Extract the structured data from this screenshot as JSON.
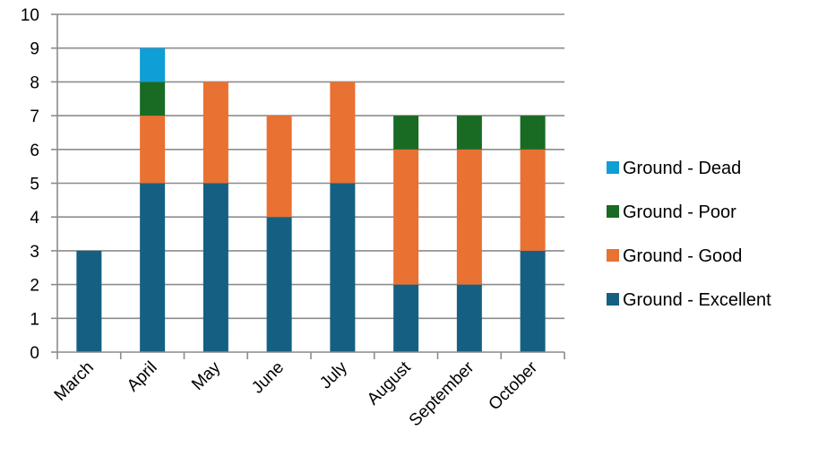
{
  "chart_data": {
    "type": "bar",
    "stacked": true,
    "categories": [
      "March",
      "April",
      "May",
      "June",
      "July",
      "August",
      "September",
      "October"
    ],
    "series": [
      {
        "name": "Ground - Excellent",
        "color": "#156082",
        "values": [
          3,
          5,
          5,
          4,
          5,
          2,
          2,
          3
        ]
      },
      {
        "name": "Ground - Good",
        "color": "#E97132",
        "values": [
          0,
          2,
          3,
          3,
          3,
          4,
          4,
          3
        ]
      },
      {
        "name": "Ground - Poor",
        "color": "#196B24",
        "values": [
          0,
          1,
          0,
          0,
          0,
          1,
          1,
          1
        ]
      },
      {
        "name": "Ground - Dead",
        "color": "#0F9ED5",
        "values": [
          0,
          1,
          0,
          0,
          0,
          0,
          0,
          0
        ]
      }
    ],
    "ylim": [
      0,
      10
    ],
    "yticks": [
      "0",
      "1",
      "2",
      "3",
      "4",
      "5",
      "6",
      "7",
      "8",
      "9",
      "10"
    ],
    "grid": true,
    "legend_position": "right",
    "legend_order": [
      "Ground - Dead",
      "Ground - Poor",
      "Ground - Good",
      "Ground - Excellent"
    ]
  }
}
